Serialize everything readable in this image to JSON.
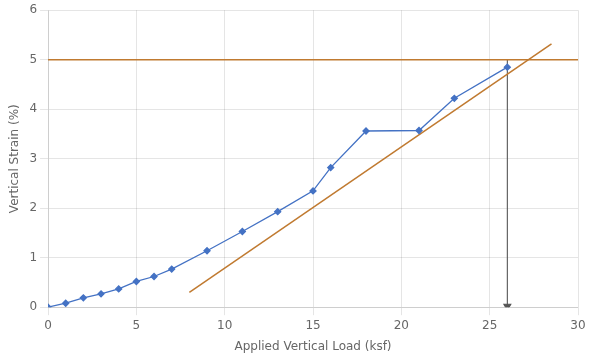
{
  "chart_data": {
    "type": "line",
    "xlabel": "Applied Vertical Load (ksf)",
    "ylabel": "Vertical Strain (%)",
    "xlim": [
      0,
      30
    ],
    "ylim": [
      0,
      6
    ],
    "xticks": [
      0,
      5,
      10,
      15,
      20,
      25,
      30
    ],
    "yticks": [
      0,
      1,
      2,
      3,
      4,
      5,
      6
    ],
    "grid": true,
    "series": [
      {
        "x": [
          0,
          1,
          2,
          3,
          4,
          5,
          6,
          7,
          9,
          11,
          13,
          15,
          16,
          18,
          21,
          23,
          26
        ],
        "values": [
          0,
          0.08,
          0.19,
          0.27,
          0.37,
          0.52,
          0.62,
          0.77,
          1.14,
          1.53,
          1.93,
          2.35,
          2.82,
          3.56,
          3.57,
          4.22,
          4.85
        ],
        "color": "#4472C4",
        "marker": "diamond"
      },
      {
        "x": [
          8.0,
          28.5
        ],
        "values": [
          0.3,
          5.32
        ],
        "color": "#C07A30"
      },
      {
        "x": [
          0,
          30
        ],
        "values": [
          5.0,
          5.0
        ],
        "color": "#C07A30"
      },
      {
        "x": [
          26,
          26
        ],
        "values": [
          5.0,
          0.02
        ],
        "color": "#555555",
        "marker": "arrow"
      }
    ]
  }
}
